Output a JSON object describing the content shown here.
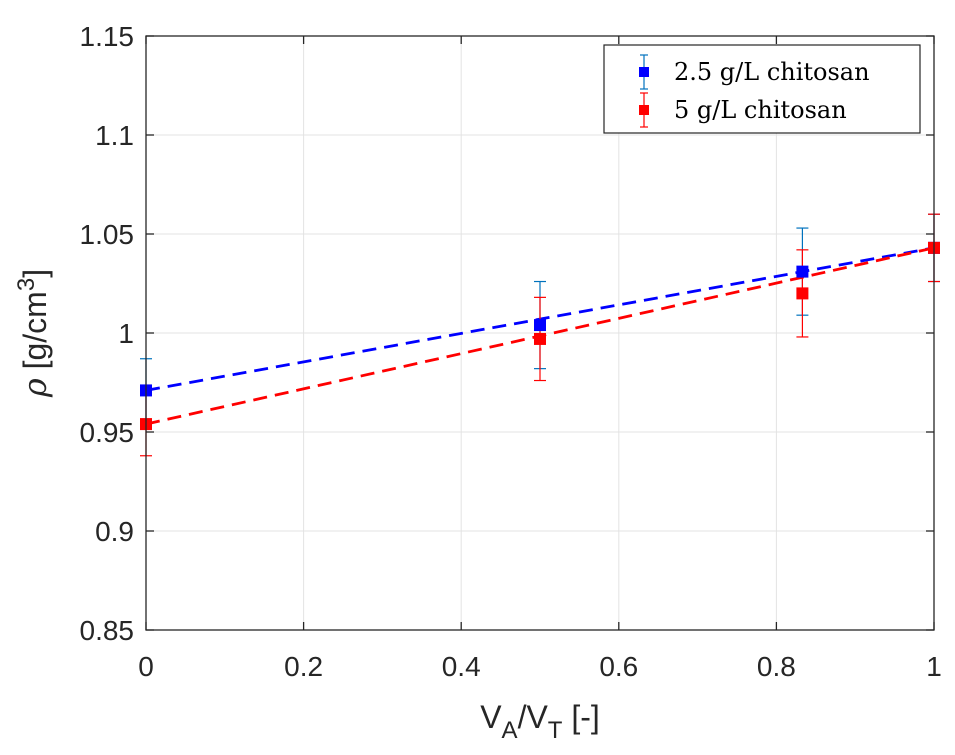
{
  "chart_data": {
    "type": "scatter",
    "title": "",
    "xlabel": {
      "main": "V",
      "sub1": "A",
      "mid": "/V",
      "sub2": "T",
      "tail": " [-]"
    },
    "ylabel": {
      "rho": "ρ",
      "main": " [g/cm",
      "sup": "3",
      "tail": "]"
    },
    "xlim": [
      0,
      1
    ],
    "ylim": [
      0.85,
      1.15
    ],
    "xticks": [
      0,
      0.2,
      0.4,
      0.6,
      0.8,
      1
    ],
    "xtick_labels": [
      "0",
      "0.2",
      "0.4",
      "0.6",
      "0.8",
      "1"
    ],
    "yticks": [
      0.85,
      0.9,
      0.95,
      1.0,
      1.05,
      1.1,
      1.15
    ],
    "ytick_labels": [
      "0.85",
      "0.9",
      "0.95",
      "1",
      "1.05",
      "1.1",
      "1.15"
    ],
    "grid": true,
    "legend_position": "top-right",
    "series": [
      {
        "name": "2.5 g/L chitosan",
        "color": "#0000ff",
        "errorbar_color": "#0072bd",
        "x": [
          0,
          0.5,
          0.833,
          1
        ],
        "y": [
          0.971,
          1.004,
          1.031,
          1.043
        ],
        "err": [
          0.016,
          0.022,
          0.022,
          0.017
        ],
        "fit": {
          "x": [
            0,
            1
          ],
          "y": [
            0.971,
            1.043
          ]
        }
      },
      {
        "name": "5 g/L chitosan",
        "color": "#ff0000",
        "errorbar_color": "#ff0000",
        "x": [
          0,
          0.5,
          0.833,
          1
        ],
        "y": [
          0.954,
          0.997,
          1.02,
          1.043
        ],
        "err": [
          0.016,
          0.021,
          0.022,
          0.017
        ],
        "fit": {
          "x": [
            0,
            1
          ],
          "y": [
            0.954,
            1.043
          ]
        }
      }
    ]
  }
}
